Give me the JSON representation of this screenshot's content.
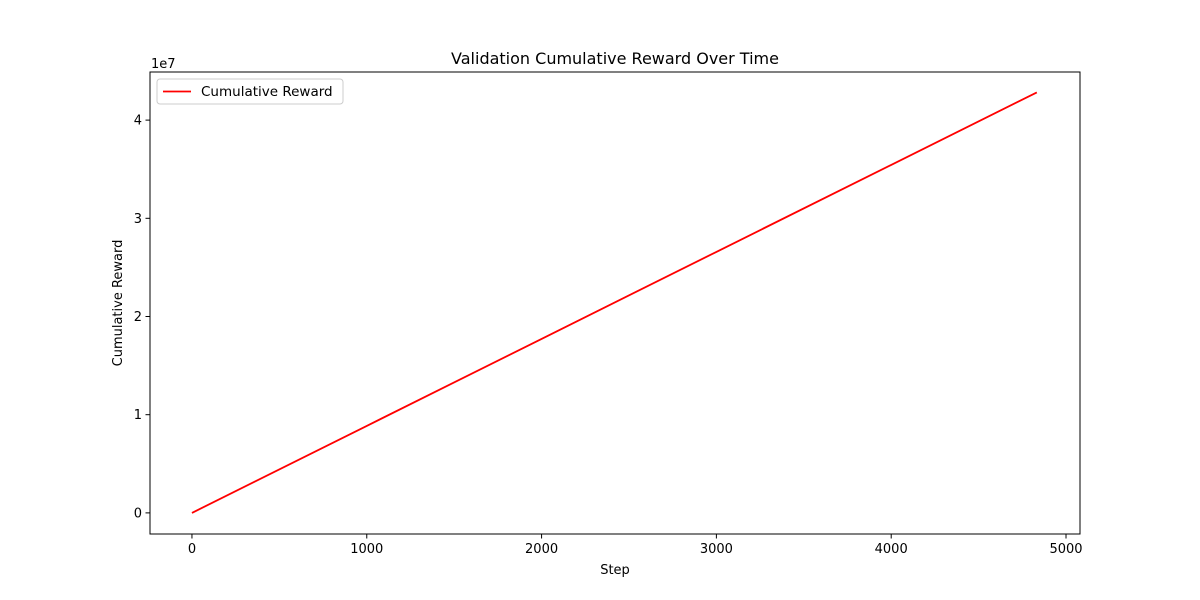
{
  "chart_data": {
    "type": "line",
    "title": "Validation Cumulative Reward Over Time",
    "xlabel": "Step",
    "ylabel": "Cumulative Reward",
    "y_offset_label": "1e7",
    "xlim": [
      -240,
      5080
    ],
    "ylim": [
      -2150000,
      44900000
    ],
    "y_display_scale": 10000000,
    "xticks": [
      0,
      1000,
      2000,
      3000,
      4000,
      5000
    ],
    "xtick_labels": [
      "0",
      "1000",
      "2000",
      "3000",
      "4000",
      "5000"
    ],
    "yticks": [
      0,
      10000000,
      20000000,
      30000000,
      40000000
    ],
    "ytick_labels": [
      "0",
      "1",
      "2",
      "3",
      "4"
    ],
    "grid": false,
    "legend_position": "upper-left",
    "series": [
      {
        "name": "Cumulative Reward",
        "color": "#ff0000",
        "x": [
          0,
          1000,
          2000,
          3000,
          4000,
          4833
        ],
        "y": [
          0,
          8860000,
          17720000,
          26580000,
          35440000,
          42820000
        ]
      }
    ]
  }
}
